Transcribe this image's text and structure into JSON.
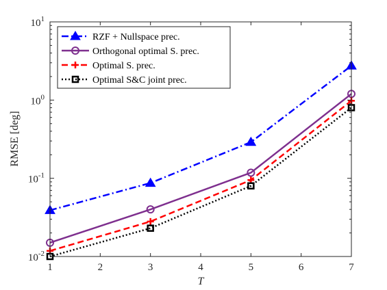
{
  "chart_data": {
    "type": "line",
    "title": "",
    "xlabel": "T",
    "ylabel": "RMSE [deg]",
    "x_scale": "linear",
    "y_scale": "log",
    "xlim": [
      1,
      7
    ],
    "ylim": [
      0.01,
      10
    ],
    "x_ticks": [
      1,
      2,
      3,
      4,
      5,
      6,
      7
    ],
    "x_tick_labels": [
      "1",
      "2",
      "3",
      "4",
      "5",
      "6",
      "7"
    ],
    "y_ticks": [
      {
        "value": 0.01,
        "base": "10",
        "exp": "-2"
      },
      {
        "value": 0.1,
        "base": "10",
        "exp": "-1"
      },
      {
        "value": 1,
        "base": "10",
        "exp": "0"
      },
      {
        "value": 10,
        "base": "10",
        "exp": "1"
      }
    ],
    "grid": false,
    "legend_position": "top-left",
    "x": [
      1,
      3,
      5,
      7
    ],
    "series": [
      {
        "name": "RZF + Nullspace prec.",
        "values": [
          0.039,
          0.087,
          0.29,
          2.75
        ],
        "color": "#0000ff",
        "dash": "dashdot",
        "marker": "triangle"
      },
      {
        "name": "Orthogonal optimal S. prec.",
        "values": [
          0.015,
          0.04,
          0.118,
          1.2
        ],
        "color": "#7e2f8e",
        "dash": "solid",
        "marker": "circle"
      },
      {
        "name": "Optimal S. prec.",
        "values": [
          0.0118,
          0.028,
          0.095,
          0.98
        ],
        "color": "#ff0000",
        "dash": "dashed",
        "marker": "plus"
      },
      {
        "name": "Optimal S&C joint prec.",
        "values": [
          0.01,
          0.023,
          0.08,
          0.8
        ],
        "color": "#000000",
        "dash": "dotted",
        "marker": "square"
      }
    ]
  }
}
